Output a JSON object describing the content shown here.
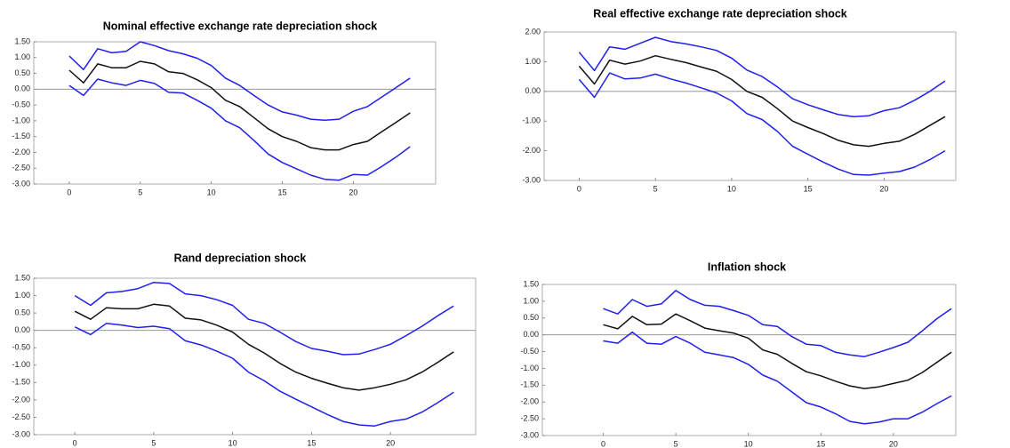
{
  "chart_data": [
    {
      "type": "line",
      "title": "Nominal effective exchange rate depreciation shock",
      "x": [
        0,
        1,
        2,
        3,
        4,
        5,
        6,
        7,
        8,
        9,
        10,
        11,
        12,
        13,
        14,
        15,
        16,
        17,
        18,
        19,
        20,
        21,
        22,
        23,
        24
      ],
      "xlim": [
        -2.5,
        25.8
      ],
      "xticks": [
        0,
        5,
        10,
        15,
        20
      ],
      "ylim": [
        -3,
        1.5
      ],
      "yticks": [
        {
          "value": 1.5,
          "label": "1.50"
        },
        {
          "value": 1,
          "label": "1.00"
        },
        {
          "value": 0.5,
          "label": "0.50"
        },
        {
          "value": 0,
          "label": "0.00"
        },
        {
          "value": -0.5,
          "label": "-0.50"
        },
        {
          "value": -1,
          "label": "-1.00"
        },
        {
          "value": -1.5,
          "label": "-1.50"
        },
        {
          "value": -2,
          "label": "-2.00"
        },
        {
          "value": -2.5,
          "label": "-2.50"
        },
        {
          "value": -3,
          "label": "-3.00"
        }
      ],
      "series": [
        {
          "color": "#1f1fef",
          "values": [
            1.05,
            0.62,
            1.28,
            1.15,
            1.2,
            1.5,
            1.38,
            1.22,
            1.12,
            0.98,
            0.75,
            0.35,
            0.12,
            -0.2,
            -0.5,
            -0.72,
            -0.82,
            -0.95,
            -0.98,
            -0.95,
            -0.7,
            -0.55,
            -0.25,
            0.05,
            0.35
          ]
        },
        {
          "color": "#111111",
          "values": [
            0.6,
            0.2,
            0.8,
            0.68,
            0.68,
            0.88,
            0.8,
            0.55,
            0.5,
            0.3,
            0.05,
            -0.35,
            -0.55,
            -0.9,
            -1.25,
            -1.5,
            -1.65,
            -1.85,
            -1.92,
            -1.92,
            -1.75,
            -1.65,
            -1.35,
            -1.05,
            -0.75
          ]
        },
        {
          "color": "#1f1fef",
          "values": [
            0.12,
            -0.2,
            0.32,
            0.2,
            0.12,
            0.28,
            0.18,
            -0.1,
            -0.12,
            -0.35,
            -0.6,
            -1.0,
            -1.22,
            -1.62,
            -2.05,
            -2.32,
            -2.52,
            -2.72,
            -2.85,
            -2.88,
            -2.7,
            -2.72,
            -2.45,
            -2.15,
            -1.82
          ]
        }
      ]
    },
    {
      "type": "line",
      "title": "Real effective exchange rate depreciation shock",
      "x": [
        0,
        1,
        2,
        3,
        4,
        5,
        6,
        7,
        8,
        9,
        10,
        11,
        12,
        13,
        14,
        15,
        16,
        17,
        18,
        19,
        20,
        21,
        22,
        23,
        24
      ],
      "xlim": [
        -2.3,
        24.7
      ],
      "xticks": [
        0,
        5,
        10,
        15,
        20
      ],
      "ylim": [
        -3,
        2
      ],
      "yticks": [
        {
          "value": 2,
          "label": "2.00"
        },
        {
          "value": 1,
          "label": "1.00"
        },
        {
          "value": 0,
          "label": "0.00"
        },
        {
          "value": -1,
          "label": "-1.00"
        },
        {
          "value": -2,
          "label": "-2.00"
        },
        {
          "value": -3,
          "label": "-3.00"
        }
      ],
      "series": [
        {
          "color": "#1f1fef",
          "values": [
            1.32,
            0.7,
            1.5,
            1.42,
            1.62,
            1.82,
            1.68,
            1.6,
            1.5,
            1.38,
            1.12,
            0.72,
            0.5,
            0.15,
            -0.25,
            -0.45,
            -0.62,
            -0.78,
            -0.85,
            -0.82,
            -0.65,
            -0.55,
            -0.3,
            0.0,
            0.35
          ]
        },
        {
          "color": "#111111",
          "values": [
            0.85,
            0.25,
            1.05,
            0.92,
            1.02,
            1.2,
            1.08,
            0.97,
            0.82,
            0.68,
            0.4,
            0.0,
            -0.2,
            -0.58,
            -1.0,
            -1.22,
            -1.42,
            -1.65,
            -1.8,
            -1.85,
            -1.75,
            -1.68,
            -1.45,
            -1.15,
            -0.85
          ]
        },
        {
          "color": "#1f1fef",
          "values": [
            0.4,
            -0.2,
            0.62,
            0.42,
            0.45,
            0.58,
            0.42,
            0.28,
            0.12,
            -0.05,
            -0.32,
            -0.75,
            -0.95,
            -1.35,
            -1.85,
            -2.12,
            -2.38,
            -2.62,
            -2.8,
            -2.82,
            -2.75,
            -2.7,
            -2.55,
            -2.3,
            -2.0
          ]
        }
      ]
    },
    {
      "type": "line",
      "title": "Rand depreciation shock",
      "x": [
        0,
        1,
        2,
        3,
        4,
        5,
        6,
        7,
        8,
        9,
        10,
        11,
        12,
        13,
        14,
        15,
        16,
        17,
        18,
        19,
        20,
        21,
        22,
        23,
        24
      ],
      "xlim": [
        -2.6,
        25.4
      ],
      "xticks": [
        0,
        5,
        10,
        15,
        20
      ],
      "ylim": [
        -3,
        1.5
      ],
      "yticks": [
        {
          "value": 1.5,
          "label": "1.50"
        },
        {
          "value": 1,
          "label": "1.00"
        },
        {
          "value": 0.5,
          "label": "0.50"
        },
        {
          "value": 0,
          "label": "0.00"
        },
        {
          "value": -0.5,
          "label": "-0.50"
        },
        {
          "value": -1,
          "label": "-1.00"
        },
        {
          "value": -1.5,
          "label": "-1.50"
        },
        {
          "value": -2,
          "label": "-2.00"
        },
        {
          "value": -2.5,
          "label": "-2.50"
        },
        {
          "value": -3,
          "label": "-3.00"
        }
      ],
      "series": [
        {
          "color": "#1f1fef",
          "values": [
            1.0,
            0.72,
            1.08,
            1.12,
            1.2,
            1.38,
            1.35,
            1.05,
            1.0,
            0.88,
            0.72,
            0.32,
            0.2,
            -0.05,
            -0.32,
            -0.52,
            -0.6,
            -0.7,
            -0.68,
            -0.55,
            -0.4,
            -0.15,
            0.12,
            0.42,
            0.7
          ]
        },
        {
          "color": "#111111",
          "values": [
            0.55,
            0.32,
            0.65,
            0.62,
            0.62,
            0.75,
            0.7,
            0.35,
            0.3,
            0.15,
            -0.05,
            -0.4,
            -0.65,
            -0.95,
            -1.2,
            -1.38,
            -1.52,
            -1.65,
            -1.72,
            -1.65,
            -1.55,
            -1.42,
            -1.2,
            -0.92,
            -0.62
          ]
        },
        {
          "color": "#1f1fef",
          "values": [
            0.1,
            -0.12,
            0.2,
            0.15,
            0.08,
            0.12,
            0.05,
            -0.3,
            -0.42,
            -0.6,
            -0.8,
            -1.2,
            -1.45,
            -1.75,
            -1.98,
            -2.2,
            -2.42,
            -2.62,
            -2.72,
            -2.75,
            -2.62,
            -2.55,
            -2.35,
            -2.08,
            -1.78
          ]
        }
      ]
    },
    {
      "type": "line",
      "title": "Inflation shock",
      "x": [
        0,
        1,
        2,
        3,
        4,
        5,
        6,
        7,
        8,
        9,
        10,
        11,
        12,
        13,
        14,
        15,
        16,
        17,
        18,
        19,
        20,
        21,
        22,
        23,
        24
      ],
      "xlim": [
        -4.2,
        24.3
      ],
      "xticks": [
        0,
        5,
        10,
        15,
        20
      ],
      "ylim": [
        -3,
        1.5
      ],
      "yticks": [
        {
          "value": 1.5,
          "label": "1.50"
        },
        {
          "value": 1,
          "label": "1.00"
        },
        {
          "value": 0.5,
          "label": "0.50"
        },
        {
          "value": 0,
          "label": "0.00"
        },
        {
          "value": -0.5,
          "label": "-0.50"
        },
        {
          "value": -1,
          "label": "-1.00"
        },
        {
          "value": -1.5,
          "label": "-1.50"
        },
        {
          "value": -2,
          "label": "-2.00"
        },
        {
          "value": -2.5,
          "label": "-2.50"
        },
        {
          "value": -3,
          "label": "-3.00"
        }
      ],
      "series": [
        {
          "color": "#1f1fef",
          "values": [
            0.78,
            0.62,
            1.05,
            0.85,
            0.92,
            1.32,
            1.05,
            0.88,
            0.85,
            0.72,
            0.58,
            0.3,
            0.25,
            -0.05,
            -0.28,
            -0.32,
            -0.52,
            -0.6,
            -0.65,
            -0.52,
            -0.38,
            -0.22,
            0.12,
            0.48,
            0.78
          ]
        },
        {
          "color": "#111111",
          "values": [
            0.3,
            0.18,
            0.55,
            0.3,
            0.32,
            0.62,
            0.42,
            0.2,
            0.12,
            0.05,
            -0.1,
            -0.45,
            -0.58,
            -0.85,
            -1.1,
            -1.22,
            -1.38,
            -1.52,
            -1.6,
            -1.55,
            -1.45,
            -1.35,
            -1.12,
            -0.82,
            -0.52
          ]
        },
        {
          "color": "#1f1fef",
          "values": [
            -0.18,
            -0.25,
            0.08,
            -0.25,
            -0.28,
            -0.05,
            -0.25,
            -0.52,
            -0.6,
            -0.68,
            -0.88,
            -1.2,
            -1.38,
            -1.7,
            -2.02,
            -2.15,
            -2.35,
            -2.58,
            -2.65,
            -2.6,
            -2.5,
            -2.5,
            -2.3,
            -2.05,
            -1.82
          ]
        }
      ]
    }
  ]
}
